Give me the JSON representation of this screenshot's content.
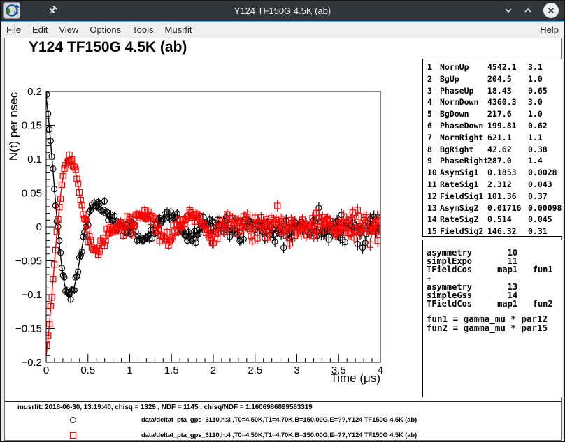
{
  "window": {
    "title": "Y124 TF150G 4.5K (ab)",
    "buttons": {
      "minimize": "chevron-down",
      "maximize": "chevron-up",
      "close": "x-circle"
    }
  },
  "menu": {
    "items": [
      "File",
      "Edit",
      "View",
      "Options",
      "Tools",
      "Musrfit"
    ],
    "right_items": [
      "Help"
    ]
  },
  "plot": {
    "title": "Y124 TF150G 4.5K (ab)"
  },
  "parameters": {
    "rows": [
      [
        "1",
        "NormUp",
        "4542.1",
        "3.1"
      ],
      [
        "2",
        "BgUp",
        "204.5",
        "1.0"
      ],
      [
        "3",
        "PhaseUp",
        "18.43",
        "0.65"
      ],
      [
        "4",
        "NormDown",
        "4360.3",
        "3.0"
      ],
      [
        "5",
        "BgDown",
        "217.6",
        "1.0"
      ],
      [
        "6",
        "PhaseDown",
        "199.81",
        "0.62"
      ],
      [
        "7",
        "NormRight",
        "621.1",
        "1.1"
      ],
      [
        "8",
        "BgRight",
        "42.62",
        "0.38"
      ],
      [
        "9",
        "PhaseRight",
        "287.0",
        "1.4"
      ],
      [
        "10",
        "AsymSig1",
        "0.1853",
        "0.0028"
      ],
      [
        "11",
        "RateSig1",
        "2.312",
        "0.043"
      ],
      [
        "12",
        "FieldSig1",
        "101.36",
        "0.37"
      ],
      [
        "13",
        "AsymSig2",
        "0.01716",
        "0.00098"
      ],
      [
        "14",
        "RateSig2",
        "0.514",
        "0.045"
      ],
      [
        "15",
        "FieldSig2",
        "146.32",
        "0.31"
      ]
    ]
  },
  "theory": {
    "lines": [
      "asymmetry       10",
      "simplExpo       11",
      "TFieldCos     map1   fun1",
      "+",
      "asymmetry       13",
      "simpleGss       14",
      "TFieldCos     map1   fun2"
    ]
  },
  "functions": {
    "lines": [
      "fun1 = gamma_mu * par12",
      "fun2 = gamma_mu * par15"
    ]
  },
  "footer": {
    "stats": "musrfit: 2018-06-30, 13:19:40, chisq = 1329 , NDF = 1145 , chisq/NDF = 1.1606986899563319",
    "legend": [
      {
        "marker": "circle",
        "color": "#000000",
        "label": "data/deltat_pta_gps_3110,h:3 ,T0=4.50K,T1=4.70K,B=150.00G,E=??,Y124 TF150G 4.5K (ab)"
      },
      {
        "marker": "square",
        "color": "#ff0000",
        "label": "data/deltat_pta_gps_3110,h:4 ,T0=4.50K,T1=4.70K,B=150.00G,E=??,Y124 TF150G 4.5K (ab)"
      }
    ]
  },
  "chart_data": {
    "type": "scatter",
    "title": "Y124 TF150G 4.5K (ab)",
    "xlabel": "Time (μs)",
    "ylabel": "N(t) per nsec",
    "xlim": [
      0,
      4
    ],
    "ylim": [
      -0.2,
      0.2
    ],
    "x_major_ticks": [
      0,
      0.5,
      1,
      1.5,
      2,
      2.5,
      3,
      3.5,
      4
    ],
    "x_tick_labels": [
      "0",
      "0.5",
      "1",
      "1.5",
      "2",
      "2.5",
      "3",
      "3.5",
      "4"
    ],
    "x_minor_step": 0.1,
    "y_major_ticks": [
      -0.2,
      -0.15,
      -0.1,
      -0.05,
      0,
      0.05,
      0.1,
      0.15,
      0.2
    ],
    "y_tick_labels": [
      "−0.2",
      "−0.15",
      "−0.1",
      "−0.05",
      "0",
      "0.05",
      "0.1",
      "0.15",
      "0.2"
    ],
    "y_minor_step": 0.01,
    "grid": false,
    "legend_position": "bottom",
    "bin_width_us": 0.015,
    "gamma_mu_MHz_per_G": 0.0135539,
    "series": [
      {
        "name": "data/deltat_pta_gps_3110,h:3",
        "marker": "circle",
        "color": "#000000",
        "model": {
          "asym1": 0.1853,
          "rate1": 2.312,
          "field1": 101.36,
          "asym2": 0.01716,
          "rate2": 0.514,
          "field2": 146.32,
          "phase_deg": 18.43
        }
      },
      {
        "name": "data/deltat_pta_gps_3110,h:4",
        "marker": "square",
        "color": "#ff0000",
        "model": {
          "asym1": 0.1853,
          "rate1": 2.312,
          "field1": 101.36,
          "asym2": 0.01716,
          "rate2": 0.514,
          "field2": 146.32,
          "phase_deg": 199.81
        }
      }
    ],
    "noise": {
      "seed": 7,
      "sigma_base": 0.004,
      "sigma_slope": 0.0018
    },
    "error_bars": {
      "half_base": 0.0032,
      "half_slope": 0.0011
    },
    "fit_line": true
  }
}
